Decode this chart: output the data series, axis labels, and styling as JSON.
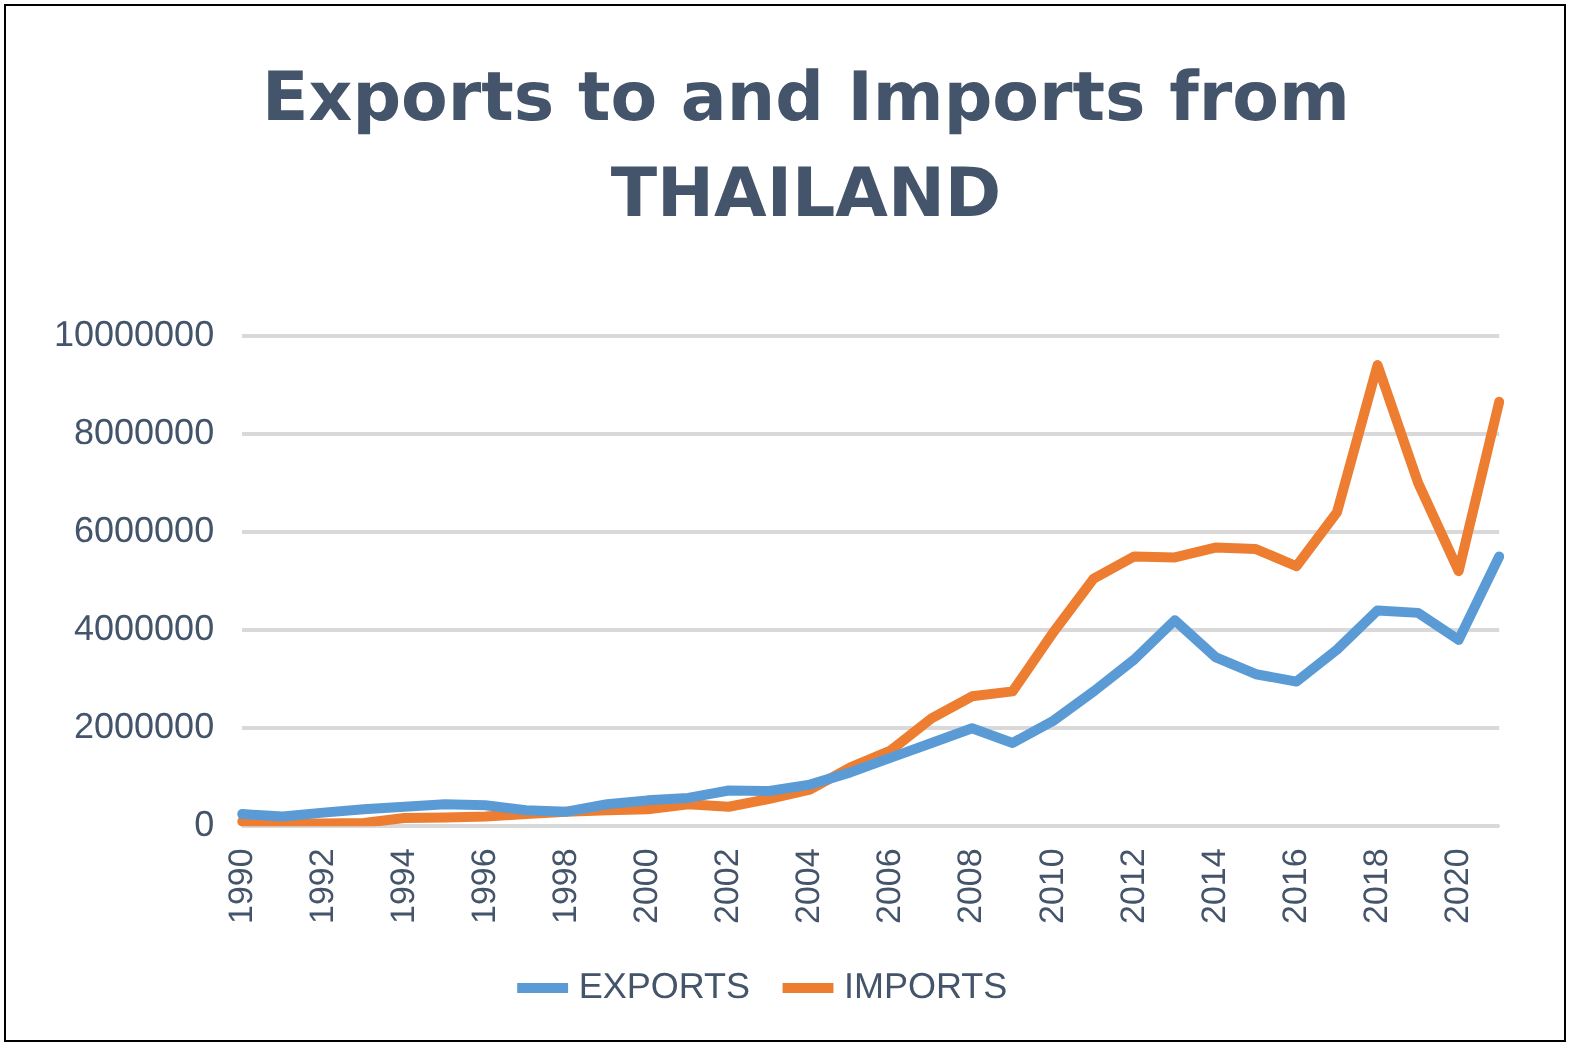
{
  "chart_data": {
    "type": "line",
    "title": "Exports to and Imports from THAILAND",
    "categories": [
      "1990",
      null,
      "1992",
      null,
      "1994",
      null,
      "1996",
      null,
      "1998",
      null,
      "2000",
      null,
      "2002",
      null,
      "2004",
      null,
      "2006",
      null,
      "2008",
      null,
      "2010",
      null,
      "2012",
      null,
      "2014",
      null,
      "2016",
      null,
      "2018",
      null,
      "2020",
      null
    ],
    "series": [
      {
        "name": "EXPORTS",
        "color": "#5b9bd5",
        "values": [
          250000,
          200000,
          280000,
          350000,
          400000,
          450000,
          430000,
          330000,
          300000,
          450000,
          530000,
          580000,
          730000,
          720000,
          850000,
          1100000,
          1400000,
          1700000,
          2000000,
          1700000,
          2150000,
          2750000,
          3400000,
          4200000,
          3450000,
          3100000,
          2950000,
          3600000,
          4400000,
          4350000,
          3800000,
          5500000
        ]
      },
      {
        "name": "IMPORTS",
        "color": "#ed7d31",
        "values": [
          100000,
          60000,
          60000,
          70000,
          170000,
          180000,
          200000,
          250000,
          300000,
          330000,
          350000,
          450000,
          400000,
          560000,
          750000,
          1200000,
          1550000,
          2200000,
          2650000,
          2750000,
          3950000,
          5050000,
          5500000,
          5480000,
          5680000,
          5650000,
          5300000,
          6400000,
          9400000,
          7000000,
          5200000,
          8650000
        ]
      }
    ],
    "ylim": [
      0,
      10000000
    ],
    "yticks": [
      0,
      2000000,
      4000000,
      6000000,
      8000000,
      10000000
    ],
    "grid": "y",
    "legend": "bottom",
    "marker": "none",
    "line_style": "solid"
  }
}
